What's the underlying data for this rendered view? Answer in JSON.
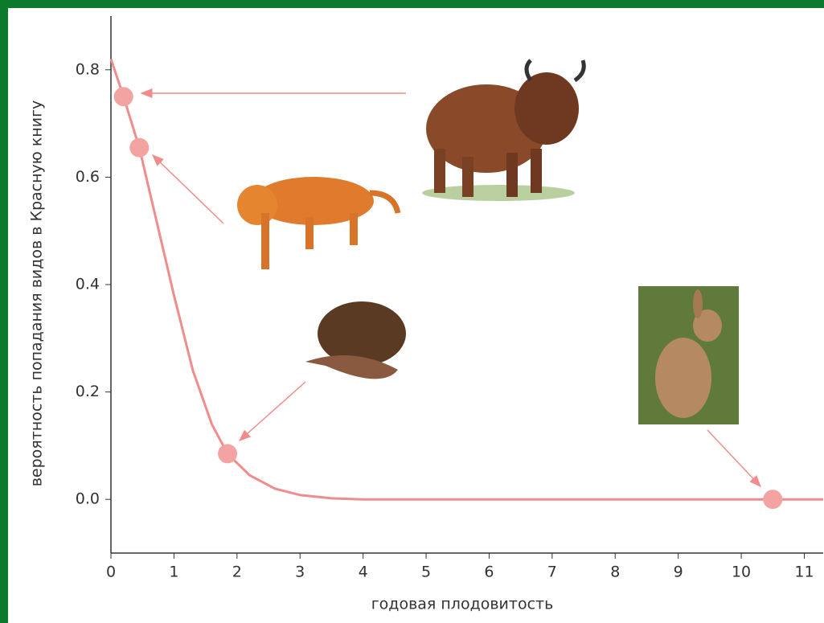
{
  "chart_data": {
    "type": "line",
    "xlabel": "годовая плодовитость",
    "ylabel": "вероятность попадания видов в Красную книгу",
    "xlim": [
      0,
      11.3
    ],
    "ylim": [
      -0.1,
      0.9
    ],
    "xticks": [
      0,
      1,
      2,
      3,
      4,
      5,
      6,
      7,
      8,
      9,
      10,
      11
    ],
    "yticks": [
      {
        "value": 0,
        "label": "0.0"
      },
      0.2,
      0.4,
      0.6,
      0.8
    ],
    "series": [
      {
        "color": "#f08c8c",
        "x": [
          0,
          0.2,
          0.45,
          0.7,
          1,
          1.3,
          1.6,
          1.85,
          2.2,
          2.6,
          3,
          3.5,
          4,
          6,
          8,
          10.5,
          11.3
        ],
        "values": [
          0.82,
          0.75,
          0.655,
          0.53,
          0.38,
          0.24,
          0.14,
          0.085,
          0.045,
          0.02,
          0.008,
          0.002,
          0,
          0,
          0,
          0,
          0
        ]
      },
      {
        "color": "#f4a3a3",
        "x": [
          0.2,
          0.45,
          1.85,
          10.5
        ],
        "values": [
          0.75,
          0.655,
          0.085,
          0
        ]
      }
    ]
  }
}
